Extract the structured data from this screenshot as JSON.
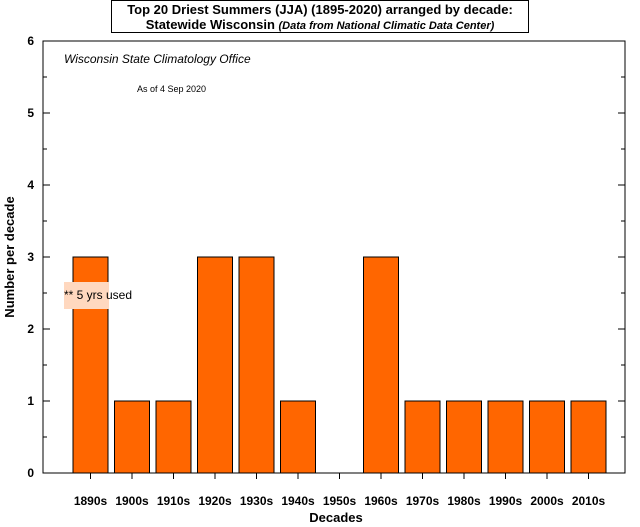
{
  "title": {
    "line1": "Top 20 Driest Summers (JJA) (1895-2020) arranged by decade:",
    "line2_main": "Statewide Wisconsin",
    "line2_source": "(Data from National Climatic Data Center)"
  },
  "annotations": {
    "office": "Wisconsin State Climatology Office",
    "as_of": "As of 4 Sep 2020",
    "note": "** 5 yrs used"
  },
  "colors": {
    "bar": "#ff6600",
    "note_highlight": "#ffd8bf"
  },
  "chart_data": {
    "type": "bar",
    "title": "Top 20 Driest Summers (JJA) (1895-2020) arranged by decade: Statewide Wisconsin",
    "xlabel": "Decades",
    "ylabel": "Number per decade",
    "ylim": [
      0,
      6
    ],
    "yticks": [
      0,
      1,
      2,
      3,
      4,
      5,
      6
    ],
    "grid": false,
    "categories": [
      "1890s",
      "1900s",
      "1910s",
      "1920s",
      "1930s",
      "1940s",
      "1950s",
      "1960s",
      "1970s",
      "1980s",
      "1990s",
      "2000s",
      "2010s"
    ],
    "values": [
      3,
      1,
      1,
      3,
      3,
      1,
      0,
      3,
      1,
      1,
      1,
      1,
      1
    ]
  }
}
